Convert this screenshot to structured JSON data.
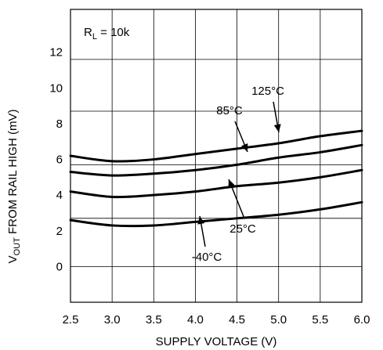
{
  "chart_data": {
    "type": "line",
    "title": "",
    "xlabel": "SUPPLY VOLTAGE (V)",
    "ylabel": {
      "prefix": "V",
      "subscript": "OUT",
      "rest": " FROM RAIL HIGH (mV)"
    },
    "annotation": {
      "main": "R",
      "subscript": "L",
      "rest": " = 10k"
    },
    "xlim": [
      2.5,
      6.0
    ],
    "ylim": [
      -2,
      14.4
    ],
    "xticks": [
      "2.5",
      "3.0",
      "3.5",
      "4.0",
      "4.5",
      "5.0",
      "5.5",
      "6.0"
    ],
    "yticks": [
      "0",
      "2",
      "4",
      "6",
      "8",
      "10",
      "12"
    ],
    "x_tick_values": [
      2.5,
      3.0,
      3.5,
      4.0,
      4.5,
      5.0,
      5.5,
      6.0
    ],
    "y_tick_values": [
      0,
      2,
      4,
      6,
      8,
      10,
      12
    ],
    "grid_y": [
      0,
      2.7,
      5.7,
      8.7,
      11.6
    ],
    "grid_x": [
      3.0,
      3.5,
      4.0,
      4.5,
      5.0,
      5.5
    ],
    "grid": true,
    "line_color": "#000000",
    "series": [
      {
        "name": "125°C",
        "x": [
          2.5,
          3.0,
          3.5,
          4.0,
          4.5,
          5.0,
          5.5,
          6.0
        ],
        "y": [
          6.2,
          5.9,
          6.0,
          6.3,
          6.6,
          6.9,
          7.3,
          7.6
        ]
      },
      {
        "name": "85°C",
        "x": [
          2.5,
          3.0,
          3.5,
          4.0,
          4.5,
          5.0,
          5.5,
          6.0
        ],
        "y": [
          5.3,
          5.1,
          5.2,
          5.4,
          5.7,
          6.1,
          6.4,
          6.8
        ]
      },
      {
        "name": "25°C",
        "x": [
          2.5,
          3.0,
          3.5,
          4.0,
          4.5,
          5.0,
          5.5,
          6.0
        ],
        "y": [
          4.2,
          3.9,
          4.0,
          4.2,
          4.5,
          4.7,
          5.0,
          5.4
        ]
      },
      {
        "name": "-40°C",
        "x": [
          2.5,
          3.0,
          3.5,
          4.0,
          4.5,
          5.0,
          5.5,
          6.0
        ],
        "y": [
          2.6,
          2.3,
          2.3,
          2.5,
          2.7,
          2.9,
          3.2,
          3.6
        ]
      }
    ],
    "labels": [
      {
        "text": "125°C",
        "series": 0
      },
      {
        "text": "85°C",
        "series": 1
      },
      {
        "text": "25°C",
        "series": 2
      },
      {
        "text": "-40°C",
        "series": 3
      }
    ]
  }
}
